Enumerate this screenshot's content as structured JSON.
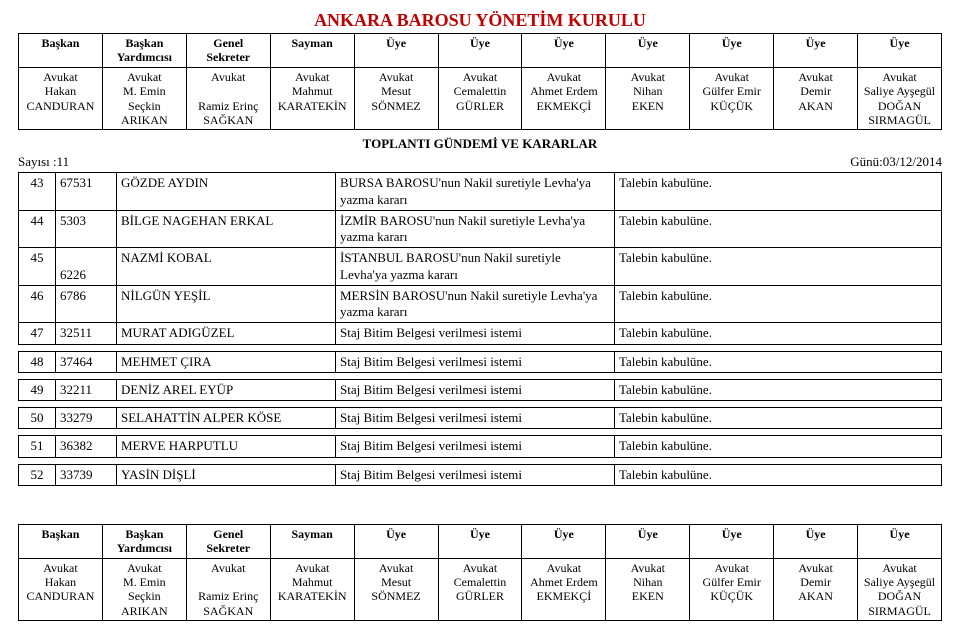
{
  "title": "ANKARA BAROSU YÖNETİM KURULU",
  "agenda_title": "TOPLANTI GÜNDEMİ VE KARARLAR",
  "meta_left": "Sayısı :11",
  "meta_right": "Günü:03/12/2014",
  "board": [
    {
      "role": "Başkan",
      "lines": [
        "Avukat",
        "Hakan",
        "CANDURAN"
      ]
    },
    {
      "role": "Başkan Yardımcısı",
      "lines": [
        "Avukat",
        "M. Emin",
        "Seçkin",
        "ARIKAN"
      ]
    },
    {
      "role": "Genel Sekreter",
      "lines": [
        "Avukat",
        "",
        "Ramiz Erinç",
        "SAĞKAN"
      ]
    },
    {
      "role": "Sayman",
      "lines": [
        "Avukat",
        "Mahmut",
        "KARATEKİN"
      ]
    },
    {
      "role": "Üye",
      "lines": [
        "Avukat",
        "Mesut",
        "SÖNMEZ"
      ]
    },
    {
      "role": "Üye",
      "lines": [
        "Avukat",
        "Cemalettin",
        "GÜRLER"
      ]
    },
    {
      "role": "Üye",
      "lines": [
        "Avukat",
        "Ahmet Erdem",
        "EKMEKÇİ"
      ]
    },
    {
      "role": "Üye",
      "lines": [
        "Avukat",
        "Nihan",
        "EKEN"
      ]
    },
    {
      "role": "Üye",
      "lines": [
        "Avukat",
        "Gülfer Emir",
        "KÜÇÜK"
      ]
    },
    {
      "role": "Üye",
      "lines": [
        "Avukat",
        "Demir",
        "AKAN"
      ]
    },
    {
      "role": "Üye",
      "lines": [
        "Avukat",
        "Saliye Ayşegül",
        "DOĞAN",
        "SIRMAGÜL"
      ]
    }
  ],
  "rows": [
    {
      "no": "43",
      "id": "67531",
      "name": "GÖZDE AYDIN",
      "topic": "BURSA BAROSU'nun Nakil suretiyle Levha'ya yazma kararı",
      "decision": "Talebin kabulüne.",
      "gap": false
    },
    {
      "no": "44",
      "id": "5303",
      "name": "BİLGE NAGEHAN ERKAL",
      "topic": "İZMİR BAROSU'nun Nakil suretiyle Levha'ya yazma kararı",
      "decision": "Talebin kabulüne.",
      "gap": false
    },
    {
      "no": "45",
      "id": "6226",
      "name": "NAZMİ KOBAL",
      "topic": "İSTANBUL BAROSU'nun Nakil suretiyle Levha'ya yazma kararı",
      "decision": "Talebin kabulüne.",
      "gap": false,
      "id_below": true
    },
    {
      "no": "46",
      "id": "6786",
      "name": "NİLGÜN YEŞİL",
      "topic": "MERSİN BAROSU'nun Nakil suretiyle Levha'ya yazma kararı",
      "decision": "Talebin kabulüne.",
      "gap": false
    },
    {
      "no": "47",
      "id": "32511",
      "name": "MURAT ADIGÜZEL",
      "topic": "Staj Bitim Belgesi verilmesi istemi",
      "decision": "Talebin kabulüne.",
      "gap": true
    },
    {
      "no": "48",
      "id": "37464",
      "name": "MEHMET ÇIRA",
      "topic": "Staj Bitim Belgesi verilmesi istemi",
      "decision": "Talebin kabulüne.",
      "gap": true
    },
    {
      "no": "49",
      "id": "32211",
      "name": "DENİZ AREL EYÜP",
      "topic": "Staj Bitim Belgesi verilmesi istemi",
      "decision": "Talebin kabulüne.",
      "gap": true
    },
    {
      "no": "50",
      "id": "33279",
      "name": "SELAHATTİN ALPER KÖSE",
      "topic": "Staj Bitim Belgesi verilmesi istemi",
      "decision": "Talebin kabulüne.",
      "gap": true
    },
    {
      "no": "51",
      "id": "36382",
      "name": "MERVE HARPUTLU",
      "topic": "Staj Bitim Belgesi verilmesi istemi",
      "decision": "Talebin kabulüne.",
      "gap": true
    },
    {
      "no": "52",
      "id": "33739",
      "name": "YASİN DİŞLİ",
      "topic": "Staj Bitim Belgesi verilmesi istemi",
      "decision": "Talebin kabulüne.",
      "gap": true
    }
  ]
}
